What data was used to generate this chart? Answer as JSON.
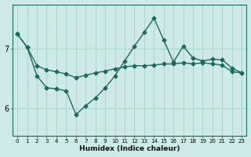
{
  "xlabel": "Humidex (Indice chaleur)",
  "bg_color": "#ceeae6",
  "line_color": "#1a6b5a",
  "grid_color": "#aed4ce",
  "yticks": [
    6,
    7
  ],
  "xticks": [
    0,
    1,
    2,
    3,
    4,
    5,
    6,
    7,
    8,
    9,
    10,
    11,
    12,
    13,
    14,
    15,
    16,
    17,
    18,
    19,
    20,
    21,
    22,
    23
  ],
  "ylim": [
    5.55,
    7.75
  ],
  "xlim": [
    -0.5,
    23.5
  ],
  "line1_x": [
    0,
    1,
    2,
    3,
    4,
    5,
    6,
    7,
    8,
    9,
    10,
    11,
    12,
    13,
    14,
    15,
    16,
    17,
    18,
    19,
    20,
    21,
    22,
    23
  ],
  "line1_y": [
    7.25,
    7.03,
    6.72,
    6.65,
    6.62,
    6.58,
    6.52,
    6.56,
    6.6,
    6.63,
    6.67,
    6.7,
    6.72,
    6.72,
    6.73,
    6.75,
    6.75,
    6.77,
    6.75,
    6.77,
    6.75,
    6.73,
    6.62,
    6.6
  ],
  "line2_x": [
    0,
    1,
    2,
    3,
    4,
    5,
    6,
    7,
    8,
    9,
    10,
    11,
    12,
    13,
    14,
    15,
    16,
    17,
    18,
    19,
    20,
    21,
    22,
    23
  ],
  "line2_y": [
    7.25,
    7.03,
    6.55,
    6.35,
    6.33,
    6.3,
    5.9,
    6.05,
    6.18,
    6.35,
    6.55,
    6.8,
    7.05,
    7.28,
    7.52,
    7.15,
    6.78,
    7.05,
    6.85,
    6.8,
    6.83,
    6.82,
    6.68,
    6.6
  ],
  "marker": "D",
  "markersize": 2.5,
  "linewidth": 1.0
}
